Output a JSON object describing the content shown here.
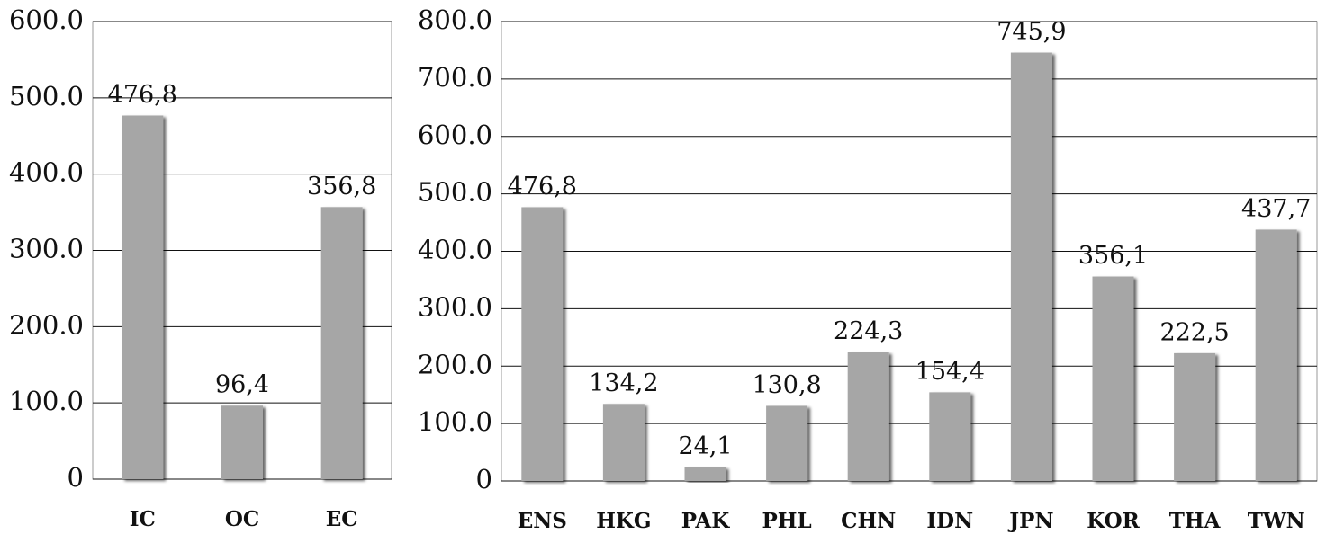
{
  "chart_data": [
    {
      "type": "bar",
      "categories": [
        "IC",
        "OC",
        "EC"
      ],
      "values": [
        476.8,
        96.4,
        356.8
      ],
      "value_labels": [
        "476,8",
        "96,4",
        "356,8"
      ],
      "color": "#a6a6a6",
      "ylim": [
        0,
        600
      ],
      "yticks": [
        0,
        {
          "value": 100,
          "label": "100.0"
        },
        {
          "value": 200,
          "label": "200.0"
        },
        {
          "value": 300,
          "label": "300.0"
        },
        {
          "value": 400,
          "label": "400.0"
        },
        {
          "value": 500,
          "label": "500.0"
        },
        {
          "value": 600,
          "label": "600.0"
        }
      ],
      "grid": true
    },
    {
      "type": "bar",
      "categories": [
        "ENS",
        "HKG",
        "PAK",
        "PHL",
        "CHN",
        "IDN",
        "JPN",
        "KOR",
        "THA",
        "TWN"
      ],
      "values": [
        476.8,
        134.2,
        24.1,
        130.8,
        224.3,
        154.4,
        745.9,
        356.1,
        222.5,
        437.7
      ],
      "value_labels": [
        "476,8",
        "134,2",
        "24,1",
        "130,8",
        "224,3",
        "154,4",
        "745,9",
        "356,1",
        "222,5",
        "437,7"
      ],
      "color": "#a6a6a6",
      "ylim": [
        0,
        800
      ],
      "yticks": [
        0,
        {
          "value": 100,
          "label": "100.0"
        },
        {
          "value": 200,
          "label": "200.0"
        },
        {
          "value": 300,
          "label": "300.0"
        },
        {
          "value": 400,
          "label": "400.0"
        },
        {
          "value": 500,
          "label": "500.0"
        },
        {
          "value": 600,
          "label": "600.0"
        },
        {
          "value": 700,
          "label": "700.0"
        },
        {
          "value": 800,
          "label": "800.0"
        }
      ],
      "grid": true
    }
  ]
}
